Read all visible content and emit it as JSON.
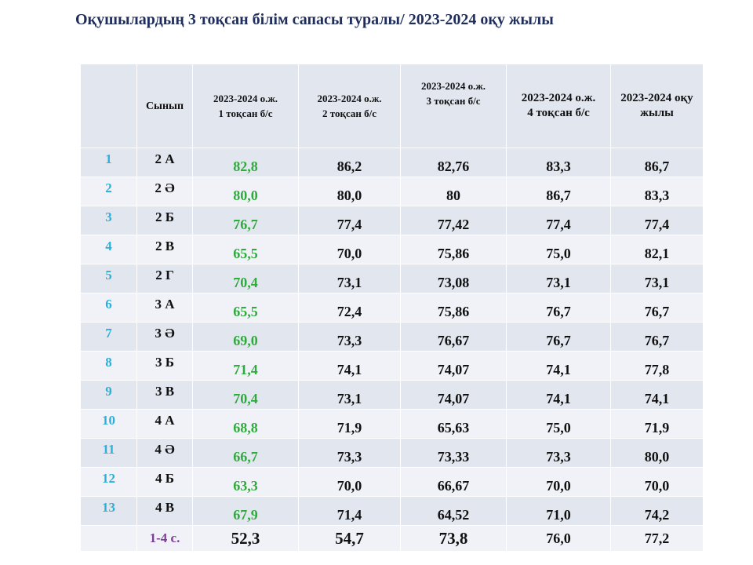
{
  "title": "Оқушылардың 3 тоқсан білім сапасы туралы/ 2023-2024 оқу жылы",
  "headers": {
    "num": "",
    "class": "Сынып",
    "q1": [
      "2023-2024 о.ж.",
      "1 тоқсан б/с"
    ],
    "q2": [
      "2023-2024 о.ж.",
      "2 тоқсан б/с"
    ],
    "q3": [
      "2023-2024 о.ж.",
      "3 тоқсан б/с"
    ],
    "q4": [
      "2023-2024 о.ж.",
      "4 тоқсан б/с"
    ],
    "year": [
      "2023-2024 оқу",
      "жылы"
    ]
  },
  "rows": [
    {
      "num": "1",
      "class": "2 А",
      "q1": "82,8",
      "q2": "86,2",
      "q3": "82,76",
      "q4": "83,3",
      "year": "86,7"
    },
    {
      "num": "2",
      "class": "2 Ә",
      "q1": "80,0",
      "q2": "80,0",
      "q3": "80",
      "q4": "86,7",
      "year": "83,3"
    },
    {
      "num": "3",
      "class": "2 Б",
      "q1": "76,7",
      "q2": "77,4",
      "q3": "77,42",
      "q4": "77,4",
      "year": "77,4"
    },
    {
      "num": "4",
      "class": "2 В",
      "q1": "65,5",
      "q2": "70,0",
      "q3": "75,86",
      "q4": "75,0",
      "year": "82,1"
    },
    {
      "num": "5",
      "class": "2 Г",
      "q1": "70,4",
      "q2": "73,1",
      "q3": "73,08",
      "q4": "73,1",
      "year": "73,1"
    },
    {
      "num": "6",
      "class": "3 А",
      "q1": "65,5",
      "q2": "72,4",
      "q3": "75,86",
      "q4": "76,7",
      "year": "76,7"
    },
    {
      "num": "7",
      "class": "3 Ә",
      "q1": "69,0",
      "q2": "73,3",
      "q3": "76,67",
      "q4": "76,7",
      "year": "76,7"
    },
    {
      "num": "8",
      "class": "3 Б",
      "q1": "71,4",
      "q2": "74,1",
      "q3": "74,07",
      "q4": "74,1",
      "year": "77,8"
    },
    {
      "num": "9",
      "class": "3 В",
      "q1": "70,4",
      "q2": "73,1",
      "q3": "74,07",
      "q4": "74,1",
      "year": "74,1"
    },
    {
      "num": "10",
      "class": "4 А",
      "q1": "68,8",
      "q2": "71,9",
      "q3": "65,63",
      "q4": "75,0",
      "year": "71,9"
    },
    {
      "num": "11",
      "class": "4 Ә",
      "q1": "66,7",
      "q2": "73,3",
      "q3": "73,33",
      "q4": "73,3",
      "year": "80,0"
    },
    {
      "num": "12",
      "class": "4 Б",
      "q1": "63,3",
      "q2": "70,0",
      "q3": "66,67",
      "q4": "70,0",
      "year": "70,0"
    },
    {
      "num": "13",
      "class": "4 В",
      "q1": "67,9",
      "q2": "71,4",
      "q3": "64,52",
      "q4": "71,0",
      "year": "74,2"
    }
  ],
  "total": {
    "num": "",
    "class": "1-4 с.",
    "q1": "52,3",
    "q2": "54,7",
    "q3": "73,8",
    "q4": "76,0",
    "year": "77,2"
  },
  "colors": {
    "title": "#1f2d5c",
    "number": "#2bb0d9",
    "green": "#2faa3c",
    "total_label": "#7b3f96",
    "band_dark": "#e2e6ef",
    "band_light": "#f0f2f7"
  }
}
